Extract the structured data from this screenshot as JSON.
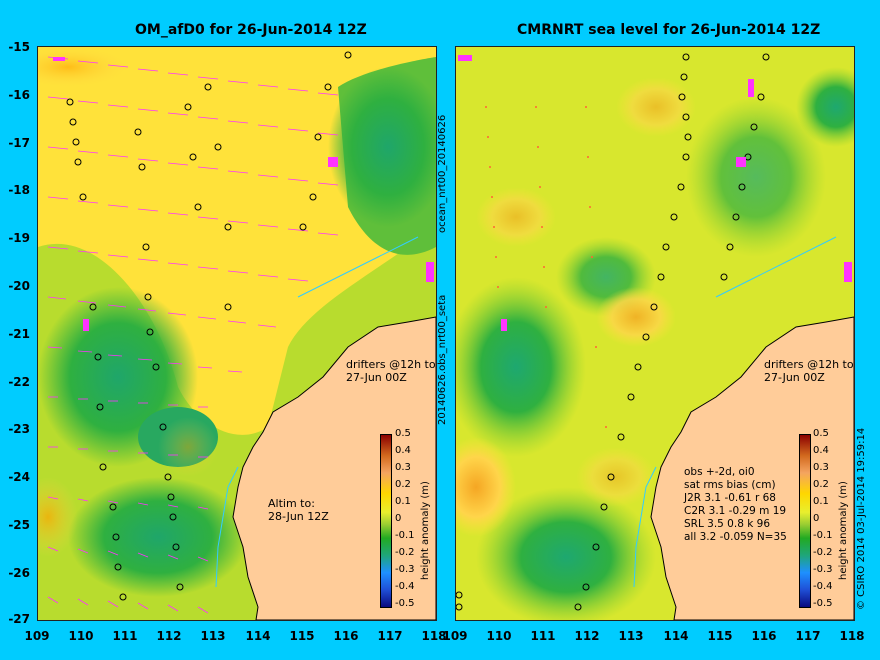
{
  "left_panel": {
    "title": "OM_afD0 for 26-Jun-2014 12Z",
    "drifters_note_1": "drifters @12h to",
    "drifters_note_2": "27-Jun 00Z",
    "altim_note_1": "Altim to:",
    "altim_note_2": "28-Jun 12Z",
    "colorbar_label": "height anomaly (m)",
    "vertical_label": "ocean_nrt00_20140626"
  },
  "right_panel": {
    "title": "CMRNRT sea level  for 26-Jun-2014 12Z",
    "drifters_note_1": "drifters @12h to",
    "drifters_note_2": "27-Jun 00Z",
    "stats_title_1": "obs +-2d, oi0",
    "stats_title_2": "sat rms bias (cm)",
    "stats_rows": [
      "J2R   3.1 -0.61 r 68",
      "C2R   3.1 -0.29 m 19",
      "SRL   3.5  0.8 k 96",
      "all   3.2 -0.059 N=35"
    ],
    "colorbar_label": "height anomaly (m)",
    "vertical_label": "20140626.obs_nrt00_seta",
    "copyright": "© CSIRO 2014   03-Jul-2014 19:59:14"
  },
  "axes": {
    "lat_labels": [
      "-15",
      "-16",
      "-17",
      "-18",
      "-19",
      "-20",
      "-21",
      "-22",
      "-23",
      "-24",
      "-25",
      "-26",
      "-27"
    ],
    "left_lon_labels": [
      "109",
      "110",
      "111",
      "112",
      "113",
      "114",
      "115",
      "116",
      "117",
      "118"
    ],
    "right_lon_labels": [
      "109",
      "110",
      "111",
      "112",
      "113",
      "114",
      "115",
      "116",
      "117",
      "118"
    ]
  },
  "colorbar_ticks": [
    "0.5",
    "0.4",
    "0.3",
    "0.2",
    "0.1",
    "0",
    "-0.1",
    "-0.2",
    "-0.3",
    "-0.4",
    "-0.5"
  ],
  "colors": {
    "background": "#00ccff",
    "land": "#ffcc99",
    "drifter": "#ff33ff",
    "sea_high": "#ffd700",
    "sea_zero": "#9acd32",
    "sea_low": "#22aa22"
  }
}
